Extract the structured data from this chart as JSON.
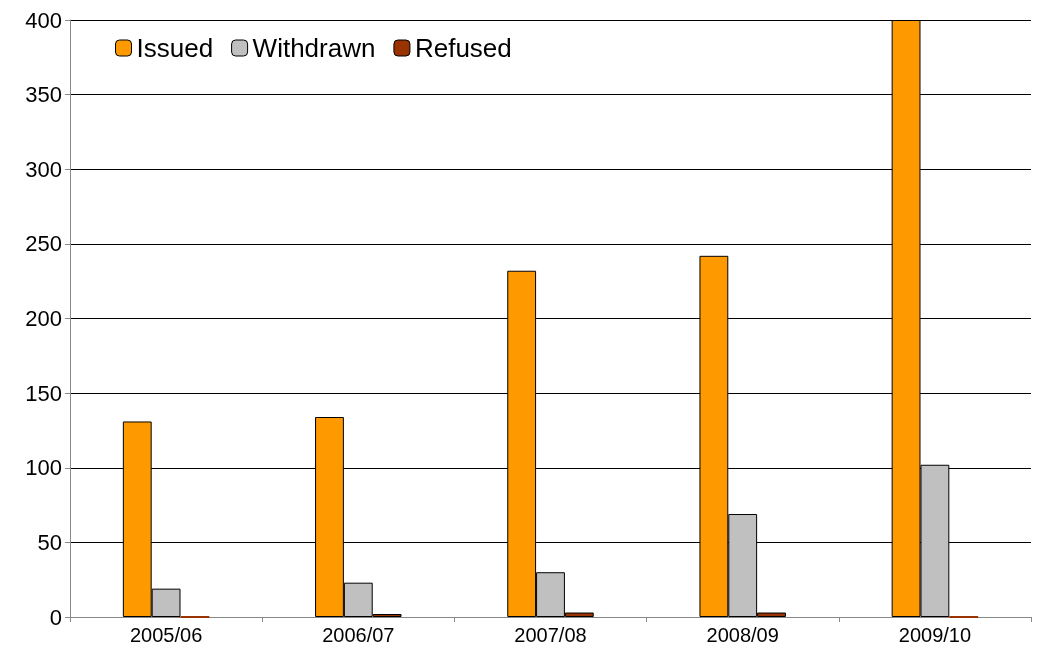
{
  "chart_data": {
    "type": "bar",
    "categories": [
      "2005/06",
      "2006/07",
      "2007/08",
      "2008/09",
      "2009/10"
    ],
    "series": [
      {
        "name": "Issued",
        "color": "#ff9900",
        "values": [
          131,
          134,
          232,
          242,
          400
        ]
      },
      {
        "name": "Withdrawn",
        "color": "#c0c0c0",
        "values": [
          19,
          23,
          30,
          69,
          102
        ]
      },
      {
        "name": "Refused",
        "color": "#993300",
        "values": [
          0,
          2,
          3,
          3,
          0
        ]
      }
    ],
    "ylim": [
      0,
      400
    ],
    "yticks": [
      0,
      50,
      100,
      150,
      200,
      250,
      300,
      350,
      400
    ],
    "grid": "y",
    "legend": "top left"
  }
}
